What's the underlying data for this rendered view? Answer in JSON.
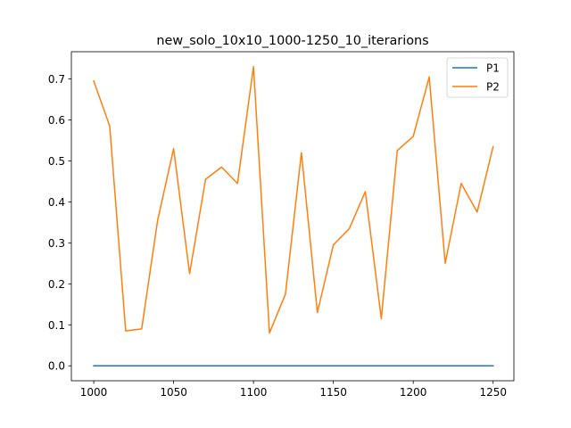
{
  "chart_data": {
    "type": "line",
    "title": "new_solo_10x10_1000-1250_10_iterarions",
    "xlabel": "",
    "ylabel": "",
    "x": [
      1000,
      1010,
      1020,
      1030,
      1040,
      1050,
      1060,
      1070,
      1080,
      1090,
      1100,
      1110,
      1120,
      1130,
      1140,
      1150,
      1160,
      1170,
      1180,
      1190,
      1200,
      1210,
      1220,
      1230,
      1240,
      1250
    ],
    "series": [
      {
        "name": "P1",
        "color": "#1f77b4",
        "values": [
          0,
          0,
          0,
          0,
          0,
          0,
          0,
          0,
          0,
          0,
          0,
          0,
          0,
          0,
          0,
          0,
          0,
          0,
          0,
          0,
          0,
          0,
          0,
          0,
          0,
          0
        ]
      },
      {
        "name": "P2",
        "color": "#ff7f0e",
        "values": [
          0.695,
          0.585,
          0.085,
          0.09,
          0.355,
          0.53,
          0.225,
          0.455,
          0.485,
          0.445,
          0.73,
          0.08,
          0.175,
          0.52,
          0.13,
          0.295,
          0.335,
          0.425,
          0.115,
          0.525,
          0.56,
          0.705,
          0.25,
          0.445,
          0.375,
          0.535
        ]
      }
    ],
    "xlim": [
      986,
      1263
    ],
    "ylim": [
      -0.0365,
      0.7665
    ],
    "xticks": [
      "1000",
      "1050",
      "1100",
      "1150",
      "1200",
      "1250"
    ],
    "yticks": [
      "0.0",
      "0.1",
      "0.2",
      "0.3",
      "0.4",
      "0.5",
      "0.6",
      "0.7"
    ],
    "grid": false,
    "legend_position": "top-right"
  }
}
